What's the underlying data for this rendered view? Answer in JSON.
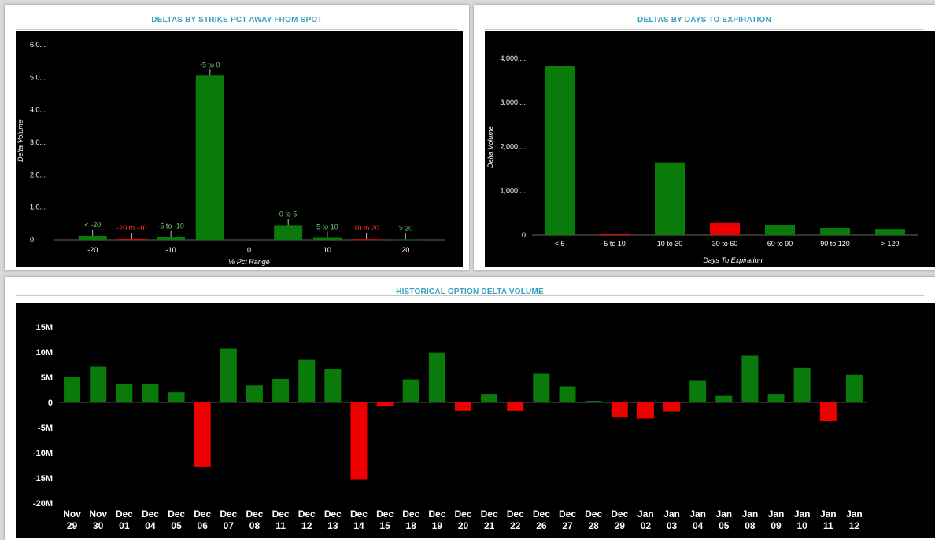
{
  "panels": {
    "strike": {
      "title": "DELTAS BY STRIKE PCT AWAY FROM SPOT"
    },
    "expiration": {
      "title": "DELTAS BY DAYS TO EXPIRATION"
    },
    "historical": {
      "title": "HISTORICAL OPTION DELTA VOLUME"
    }
  },
  "colors": {
    "up": "#0a7a0a",
    "down": "#ee0000",
    "label_up": "#6ccf6c",
    "label_down": "#ff3030",
    "axis_text": "#ffffff",
    "title": "#3a9fc0"
  },
  "chart_data": [
    {
      "id": "strike",
      "type": "bar",
      "xlabel": "% Pct Range",
      "ylabel": "Delta Volume",
      "xlim": [
        -25,
        25
      ],
      "ylim": [
        0,
        6000
      ],
      "x_ticks": [
        -20,
        -10,
        0,
        10,
        20
      ],
      "y_ticks": [
        0,
        1000,
        2000,
        3000,
        4000,
        5000,
        6000
      ],
      "y_tick_labels": [
        "0",
        "1,0...",
        "2,0...",
        "3,0...",
        "4,0...",
        "5,0...",
        "6,0..."
      ],
      "grid": false,
      "bars": [
        {
          "label": "< -20",
          "x": -20,
          "value": 120,
          "sign": "up"
        },
        {
          "label": "-20 to -10",
          "x": -15,
          "value": 25,
          "sign": "down"
        },
        {
          "label": "-5 to -10",
          "x": -10,
          "value": 80,
          "sign": "up"
        },
        {
          "label": "-5 to 0",
          "x": -5,
          "value": 5050,
          "sign": "up"
        },
        {
          "label": "0 to 5",
          "x": 5,
          "value": 450,
          "sign": "up"
        },
        {
          "label": "5 to 10",
          "x": 10,
          "value": 60,
          "sign": "up"
        },
        {
          "label": "10 to 20",
          "x": 15,
          "value": 20,
          "sign": "down"
        },
        {
          "label": "> 20",
          "x": 20,
          "value": 15,
          "sign": "up"
        }
      ]
    },
    {
      "id": "expiration",
      "type": "bar",
      "xlabel": "Days To Expiration",
      "ylabel": "Delta Volume",
      "ylim": [
        0,
        4300
      ],
      "y_ticks": [
        0,
        1000,
        2000,
        3000,
        4000
      ],
      "y_tick_labels": [
        "0",
        "1,000,...",
        "2,000,...",
        "3,000,...",
        "4,000,..."
      ],
      "grid": false,
      "categories": [
        "< 5",
        "5 to 10",
        "10 to 30",
        "30 to 60",
        "60 to 90",
        "90 to 120",
        "> 120"
      ],
      "values": [
        3820,
        20,
        1640,
        270,
        230,
        160,
        140
      ],
      "signs": [
        "up",
        "down",
        "up",
        "down",
        "up",
        "up",
        "up"
      ]
    },
    {
      "id": "historical",
      "type": "bar",
      "ylim": [
        -20,
        15
      ],
      "y_ticks": [
        15,
        10,
        5,
        0,
        -5,
        -10,
        -15,
        -20
      ],
      "y_tick_labels": [
        "15M",
        "10M",
        "5M",
        "0",
        "-5M",
        "-10M",
        "-15M",
        "-20M"
      ],
      "grid": false,
      "categories": [
        [
          "Nov",
          "29"
        ],
        [
          "Nov",
          "30"
        ],
        [
          "Dec",
          "01"
        ],
        [
          "Dec",
          "04"
        ],
        [
          "Dec",
          "05"
        ],
        [
          "Dec",
          "06"
        ],
        [
          "Dec",
          "07"
        ],
        [
          "Dec",
          "08"
        ],
        [
          "Dec",
          "11"
        ],
        [
          "Dec",
          "12"
        ],
        [
          "Dec",
          "13"
        ],
        [
          "Dec",
          "14"
        ],
        [
          "Dec",
          "15"
        ],
        [
          "Dec",
          "18"
        ],
        [
          "Dec",
          "19"
        ],
        [
          "Dec",
          "20"
        ],
        [
          "Dec",
          "21"
        ],
        [
          "Dec",
          "22"
        ],
        [
          "Dec",
          "26"
        ],
        [
          "Dec",
          "27"
        ],
        [
          "Dec",
          "28"
        ],
        [
          "Dec",
          "29"
        ],
        [
          "Jan",
          "02"
        ],
        [
          "Jan",
          "03"
        ],
        [
          "Jan",
          "04"
        ],
        [
          "Jan",
          "05"
        ],
        [
          "Jan",
          "08"
        ],
        [
          "Jan",
          "09"
        ],
        [
          "Jan",
          "10"
        ],
        [
          "Jan",
          "11"
        ],
        [
          "Jan",
          "12"
        ]
      ],
      "values": [
        5.1,
        7.1,
        3.6,
        3.7,
        2.0,
        -12.8,
        10.7,
        3.4,
        4.7,
        8.5,
        6.6,
        -15.4,
        -0.8,
        4.6,
        9.9,
        -1.7,
        1.7,
        -1.7,
        5.7,
        3.2,
        0.3,
        -3.0,
        -3.2,
        -1.8,
        4.3,
        1.3,
        9.3,
        1.7,
        6.9,
        -3.7,
        5.5
      ]
    }
  ]
}
